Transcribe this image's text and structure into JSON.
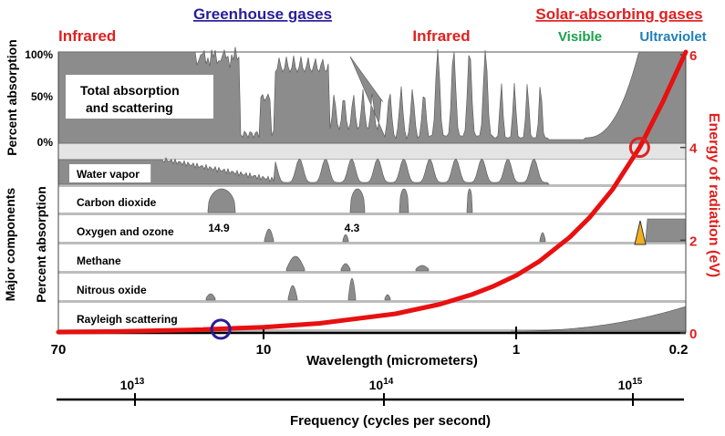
{
  "header": {
    "greenhouse": "Greenhouse gases",
    "solar": "Solar-absorbing gases",
    "infrared_left": "Infrared",
    "infrared_right": "Infrared",
    "visible": "Visible",
    "ultraviolet": "Ultraviolet"
  },
  "colors": {
    "greenhouse": "#2a1d9a",
    "solar": "#e02020",
    "visible": "#1aa04a",
    "ultraviolet": "#1f7fb8",
    "fill": "#8c8c8c",
    "curve": "#e81010",
    "ozone_peak": "#f0b020"
  },
  "labels": {
    "ylabel_total": "Percent absorption",
    "ylabel_major": "Major components",
    "ylabel_components": "Percent absorption",
    "yticks_total": [
      "100%",
      "50%",
      "0%"
    ],
    "xaxis_title": "Wavelength (micrometers)",
    "freq_title": "Frequency (cycles per second)",
    "right_axis_title": "Energy of radiation (eV)",
    "peak_149": "14.9",
    "peak_43": "4.3"
  },
  "chart_data": {
    "type": "area",
    "title": "",
    "x_wavelength_ticks": [
      "70",
      "10",
      "1",
      "0.2"
    ],
    "x_wavelength_values": [
      70,
      10,
      1,
      0.2
    ],
    "x_scale": "log (reversed)",
    "frequency_ticks": [
      {
        "base": "10",
        "exp": "13",
        "value": 10000000000000.0
      },
      {
        "base": "10",
        "exp": "14",
        "value": 100000000000000.0
      },
      {
        "base": "10",
        "exp": "15",
        "value": 1000000000000000.0
      }
    ],
    "right_axis": {
      "label": "Energy of radiation (eV)",
      "ticks": [
        "0",
        "2",
        "4",
        "6"
      ],
      "range": [
        0,
        6
      ]
    },
    "total_panel": {
      "label": "Total absorption and scattering",
      "yticks": [
        "100%",
        "50%",
        "0%"
      ],
      "ylim": [
        0,
        100
      ]
    },
    "components": [
      {
        "name": "Water vapor"
      },
      {
        "name": "Carbon dioxide"
      },
      {
        "name": "Oxygen and ozone"
      },
      {
        "name": "Methane"
      },
      {
        "name": "Nitrous oxide"
      },
      {
        "name": "Rayleigh scattering"
      }
    ],
    "energy_curve": {
      "name": "Energy of radiation",
      "wavelength_um": [
        70,
        40,
        20,
        10,
        6,
        3,
        2,
        1.5,
        1.24,
        1,
        0.8,
        0.6,
        0.5,
        0.4,
        0.31,
        0.25,
        0.2
      ],
      "energy_ev": [
        0.018,
        0.031,
        0.062,
        0.124,
        0.207,
        0.413,
        0.62,
        0.827,
        1.0,
        1.24,
        1.55,
        2.07,
        2.48,
        3.1,
        4.0,
        4.96,
        6.2
      ]
    },
    "markers": [
      {
        "name": "greenhouse marker",
        "wavelength_um": 15,
        "energy_ev": 0.08,
        "color": "#2a1d9a"
      },
      {
        "name": "solar marker",
        "wavelength_um": 0.31,
        "energy_ev": 4.0,
        "color": "#e02020"
      }
    ]
  }
}
